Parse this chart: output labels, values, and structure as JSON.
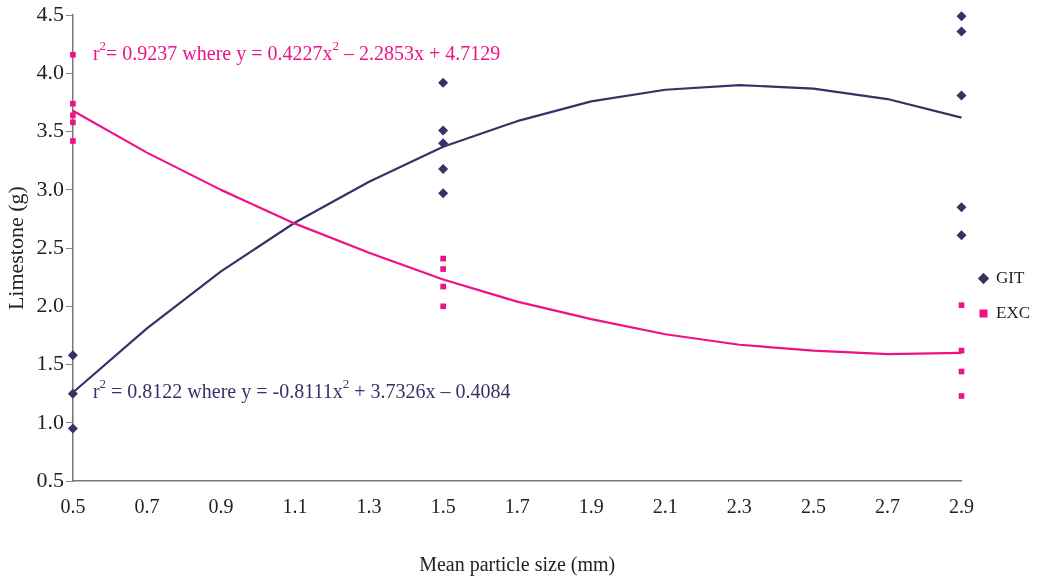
{
  "chart_data": {
    "type": "scatter",
    "xlabel": "Mean particle size (mm)",
    "ylabel": "Limestone (g)",
    "xlim": [
      0.5,
      2.9
    ],
    "xticks": [
      0.5,
      0.7,
      0.9,
      1.1,
      1.3,
      1.5,
      1.7,
      1.9,
      2.1,
      2.3,
      2.5,
      2.7,
      2.9
    ],
    "ylim": [
      0.5,
      4.5
    ],
    "yticks": [
      0.5,
      {
        "value": 1,
        "label": "1.0"
      },
      1.5,
      {
        "value": 2,
        "label": "2.0"
      },
      2.5,
      {
        "value": 3,
        "label": "3.0"
      },
      3.5,
      {
        "value": 4,
        "label": "4.0"
      },
      4.5
    ],
    "grid": false,
    "legend": "right",
    "marker": "none",
    "series": [
      {
        "name": "GIT",
        "color": "#333366",
        "marker": "diamond",
        "x": [
          0.5,
          0.5,
          0.5,
          1.5,
          1.5,
          1.5,
          1.5,
          1.5,
          2.9,
          2.9,
          2.9,
          2.9,
          2.9
        ],
        "values": [
          1.58,
          1.25,
          0.95,
          3.92,
          3.51,
          3.4,
          3.18,
          2.97,
          4.49,
          4.36,
          3.81,
          2.85,
          2.61
        ]
      },
      {
        "name": "EXC",
        "color": "#ee1188",
        "marker": "square",
        "x": [
          0.5,
          0.5,
          0.5,
          0.5,
          0.5,
          1.5,
          1.5,
          1.5,
          1.5,
          2.9,
          2.9,
          2.9,
          2.9
        ],
        "values": [
          4.16,
          3.74,
          3.64,
          3.58,
          3.42,
          2.41,
          2.32,
          2.17,
          2.0,
          2.01,
          1.62,
          1.44,
          1.23
        ]
      },
      {
        "type": "line",
        "color": "#ee1188",
        "x": [
          0.5,
          0.7,
          0.9,
          1.1,
          1.3,
          1.5,
          1.7,
          1.9,
          2.1,
          2.3,
          2.5,
          2.7,
          2.9
        ],
        "values": [
          3.68,
          3.32,
          3.0,
          2.71,
          2.46,
          2.23,
          2.04,
          1.89,
          1.76,
          1.67,
          1.62,
          1.59,
          1.6
        ]
      },
      {
        "type": "line",
        "color": "#333366",
        "x": [
          0.5,
          0.7,
          0.9,
          1.1,
          1.3,
          1.5,
          1.7,
          1.9,
          2.1,
          2.3,
          2.5,
          2.7,
          2.9
        ],
        "values": [
          1.26,
          1.81,
          2.3,
          2.72,
          3.07,
          3.37,
          3.59,
          3.76,
          3.86,
          3.9,
          3.87,
          3.78,
          3.62
        ]
      }
    ],
    "annotations": [
      "r$^{2}$= 0.9237 where y = 0.4227x$^{2}$ – 2.2853x + 4.7129",
      "r$^{2}$ = 0.8122 where y = -0.8111x$^{2}$ + 3.7326x – 0.4084"
    ]
  }
}
